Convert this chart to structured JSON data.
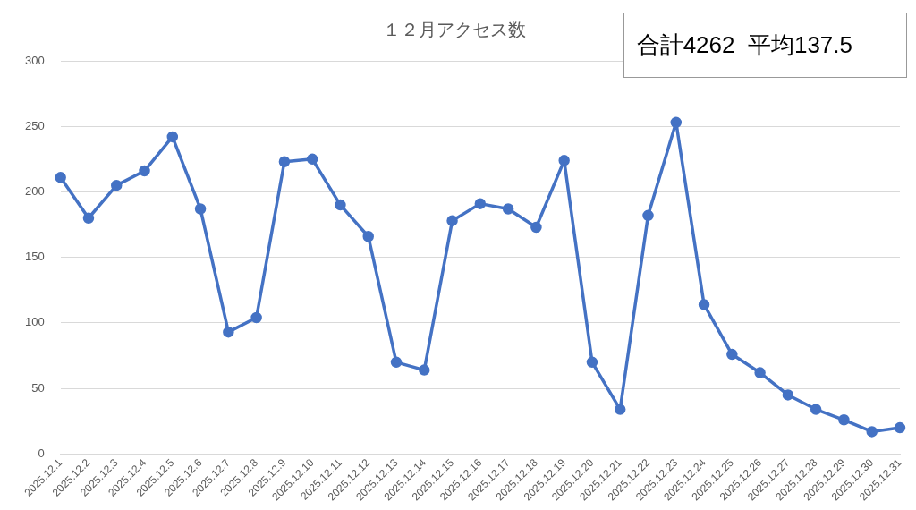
{
  "chart_data": {
    "type": "line",
    "title": "１２月アクセス数",
    "categories": [
      "2025.12.1",
      "2025.12.2",
      "2025.12.3",
      "2025.12.4",
      "2025.12.5",
      "2025.12.6",
      "2025.12.7",
      "2025.12.8",
      "2025.12.9",
      "2025.12.10",
      "2025.12.11",
      "2025.12.12",
      "2025.12.13",
      "2025.12.14",
      "2025.12.15",
      "2025.12.16",
      "2025.12.17",
      "2025.12.18",
      "2025.12.19",
      "2025.12.20",
      "2025.12.21",
      "2025.12.22",
      "2025.12.23",
      "2025.12.24",
      "2025.12.25",
      "2025.12.26",
      "2025.12.27",
      "2025.12.28",
      "2025.12.29",
      "2025.12.30",
      "2025.12.31"
    ],
    "series": [
      {
        "color": "#4472c4",
        "values": [
          211,
          180,
          205,
          216,
          242,
          187,
          93,
          104,
          223,
          225,
          190,
          166,
          70,
          64,
          178,
          191,
          187,
          173,
          224,
          70,
          34,
          182,
          253,
          114,
          76,
          62,
          45,
          34,
          26,
          17,
          20
        ]
      }
    ],
    "ylim": [
      0,
      300
    ],
    "yticks": [
      0,
      50,
      100,
      150,
      200,
      250,
      300
    ],
    "grid": "y",
    "legend": false,
    "marker": "circle",
    "line_style": "solid",
    "annotations": [
      "合計4262  平均137.5"
    ]
  }
}
